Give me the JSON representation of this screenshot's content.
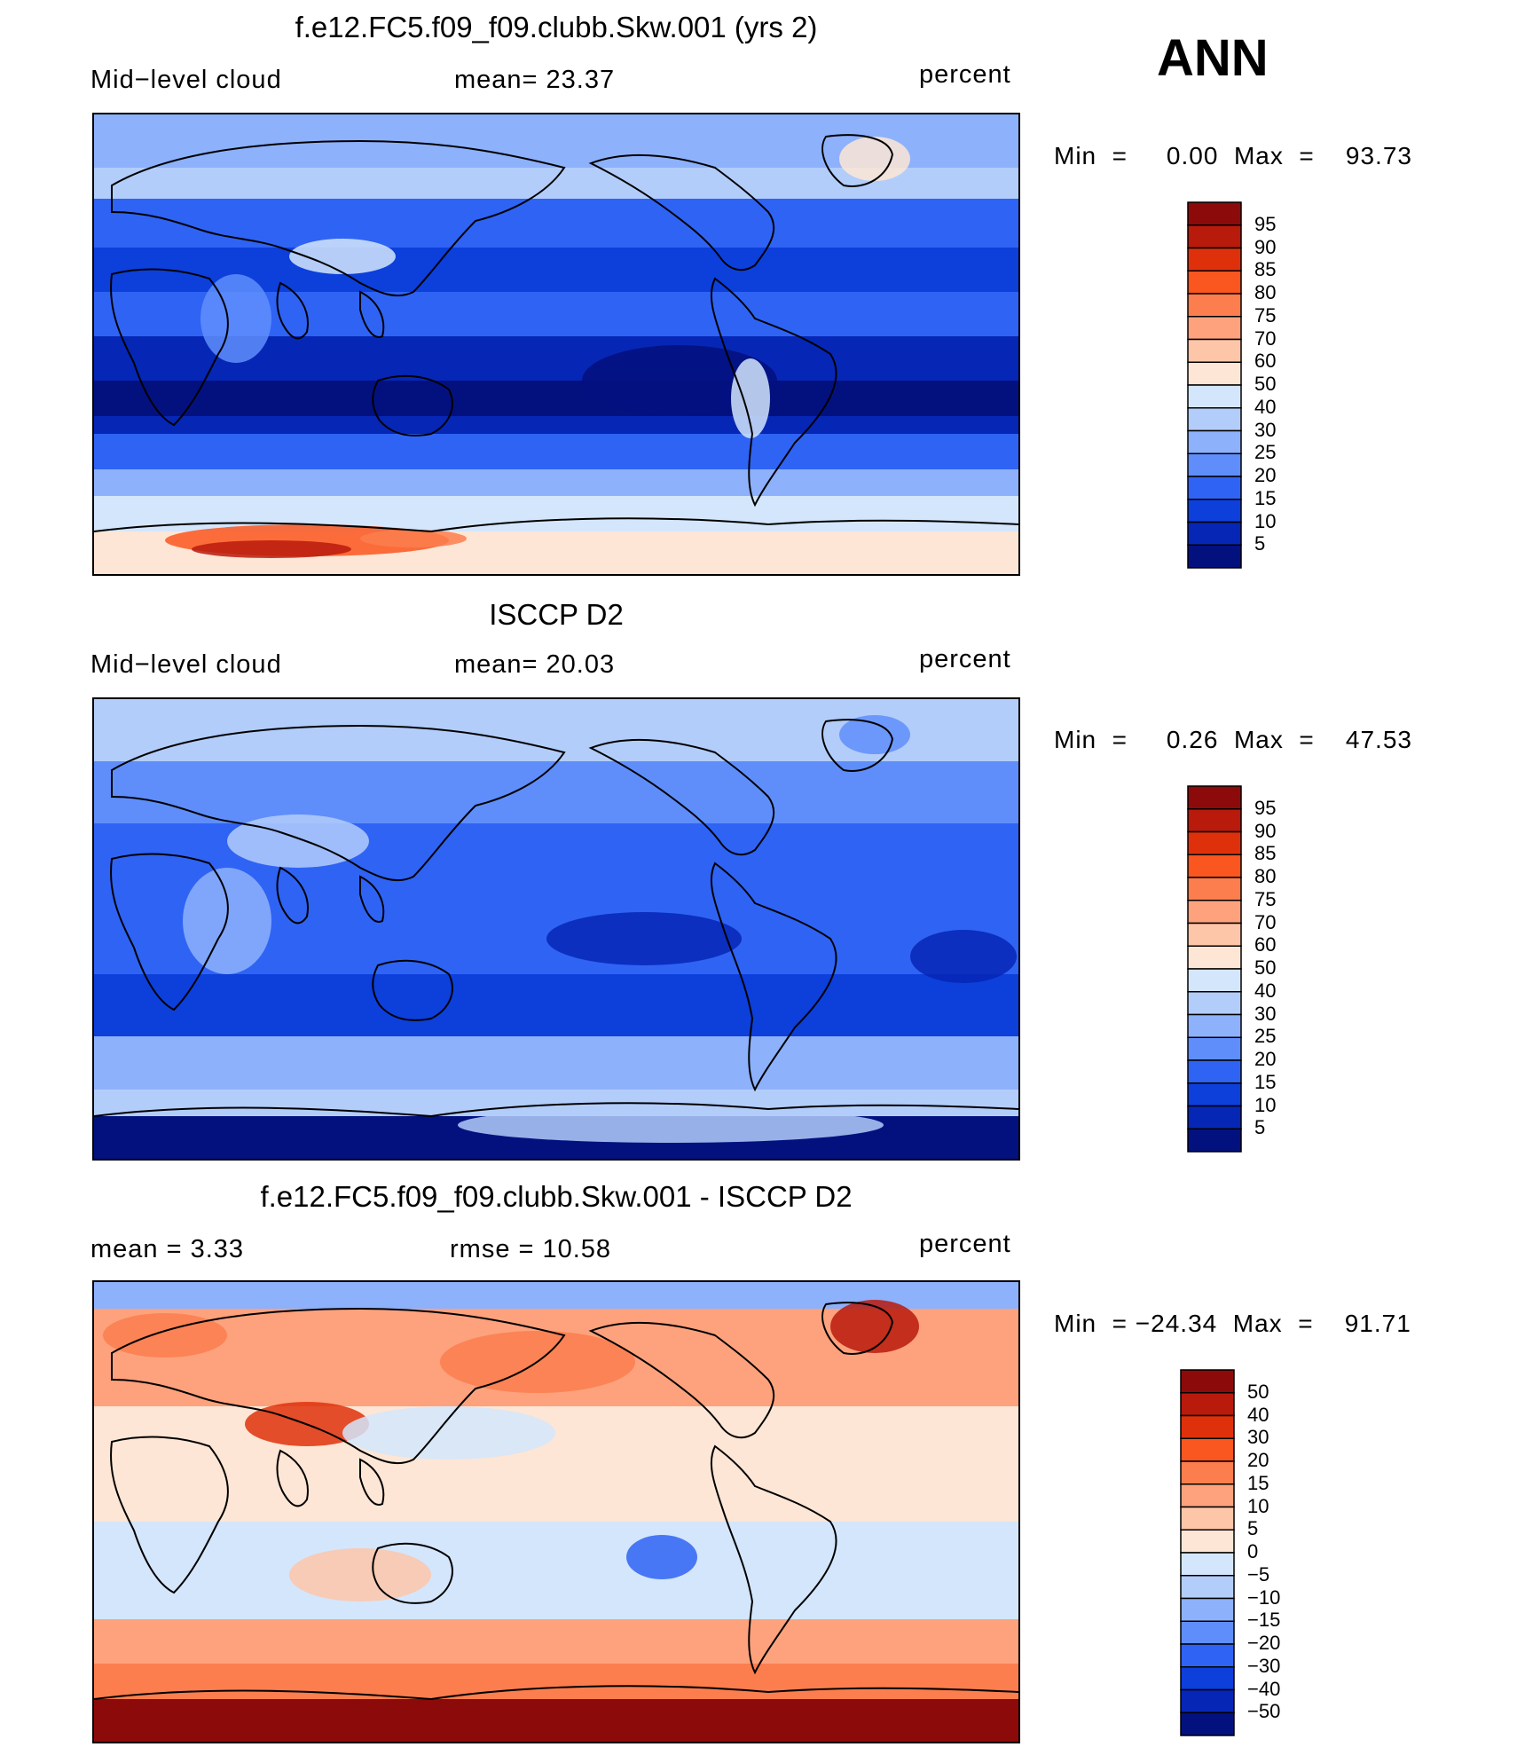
{
  "season": "ANN",
  "chart_data": [
    {
      "type": "heatmap",
      "title": "f.e12.FC5.f09_f09.clubb.Skw.001 (yrs 2)",
      "left_label": "Mid−level  cloud",
      "center_label": "mean=   23.37",
      "units": "percent",
      "min_max": "Min  =     0.00  Max  =    93.73",
      "colorbar": {
        "levels": [
          "95",
          "90",
          "85",
          "80",
          "75",
          "70",
          "60",
          "50",
          "40",
          "30",
          "25",
          "20",
          "15",
          "10",
          "5"
        ],
        "colors": [
          "#8c0a0a",
          "#b81a0c",
          "#de310b",
          "#fa561f",
          "#fc7e4e",
          "#fda27d",
          "#fdc6a9",
          "#fde6d5",
          "#d4e6fb",
          "#b3cdfa",
          "#8db1fb",
          "#5f8efb",
          "#2f63f4",
          "#0d3fdb",
          "#0626b5",
          "#03117f"
        ]
      }
    },
    {
      "type": "heatmap",
      "title": "ISCCP D2",
      "left_label": "Mid−level  cloud",
      "center_label": "mean=   20.03",
      "units": "percent",
      "min_max": "Min  =     0.26  Max  =    47.53",
      "colorbar": {
        "levels": [
          "95",
          "90",
          "85",
          "80",
          "75",
          "70",
          "60",
          "50",
          "40",
          "30",
          "25",
          "20",
          "15",
          "10",
          "5"
        ],
        "colors": [
          "#8c0a0a",
          "#b81a0c",
          "#de310b",
          "#fa561f",
          "#fc7e4e",
          "#fda27d",
          "#fdc6a9",
          "#fde6d5",
          "#d4e6fb",
          "#b3cdfa",
          "#8db1fb",
          "#5f8efb",
          "#2f63f4",
          "#0d3fdb",
          "#0626b5",
          "#03117f"
        ]
      }
    },
    {
      "type": "heatmap",
      "title": "f.e12.FC5.f09_f09.clubb.Skw.001 - ISCCP D2",
      "left_label": "mean  =     3.33",
      "center_label": "rmse  =    10.58",
      "units": "percent",
      "min_max": "Min  = −24.34  Max  =    91.71",
      "colorbar": {
        "levels": [
          "50",
          "40",
          "30",
          "20",
          "15",
          "10",
          "5",
          "0",
          "−5",
          "−10",
          "−15",
          "−20",
          "−30",
          "−40",
          "−50"
        ],
        "colors": [
          "#8c0a0a",
          "#b81a0c",
          "#de310b",
          "#fa561f",
          "#fc7e4e",
          "#fda27d",
          "#fdc6a9",
          "#fde6d5",
          "#d4e6fb",
          "#b3cdfa",
          "#8db1fb",
          "#5f8efb",
          "#2f63f4",
          "#0d3fdb",
          "#0626b5",
          "#03117f"
        ]
      }
    }
  ]
}
